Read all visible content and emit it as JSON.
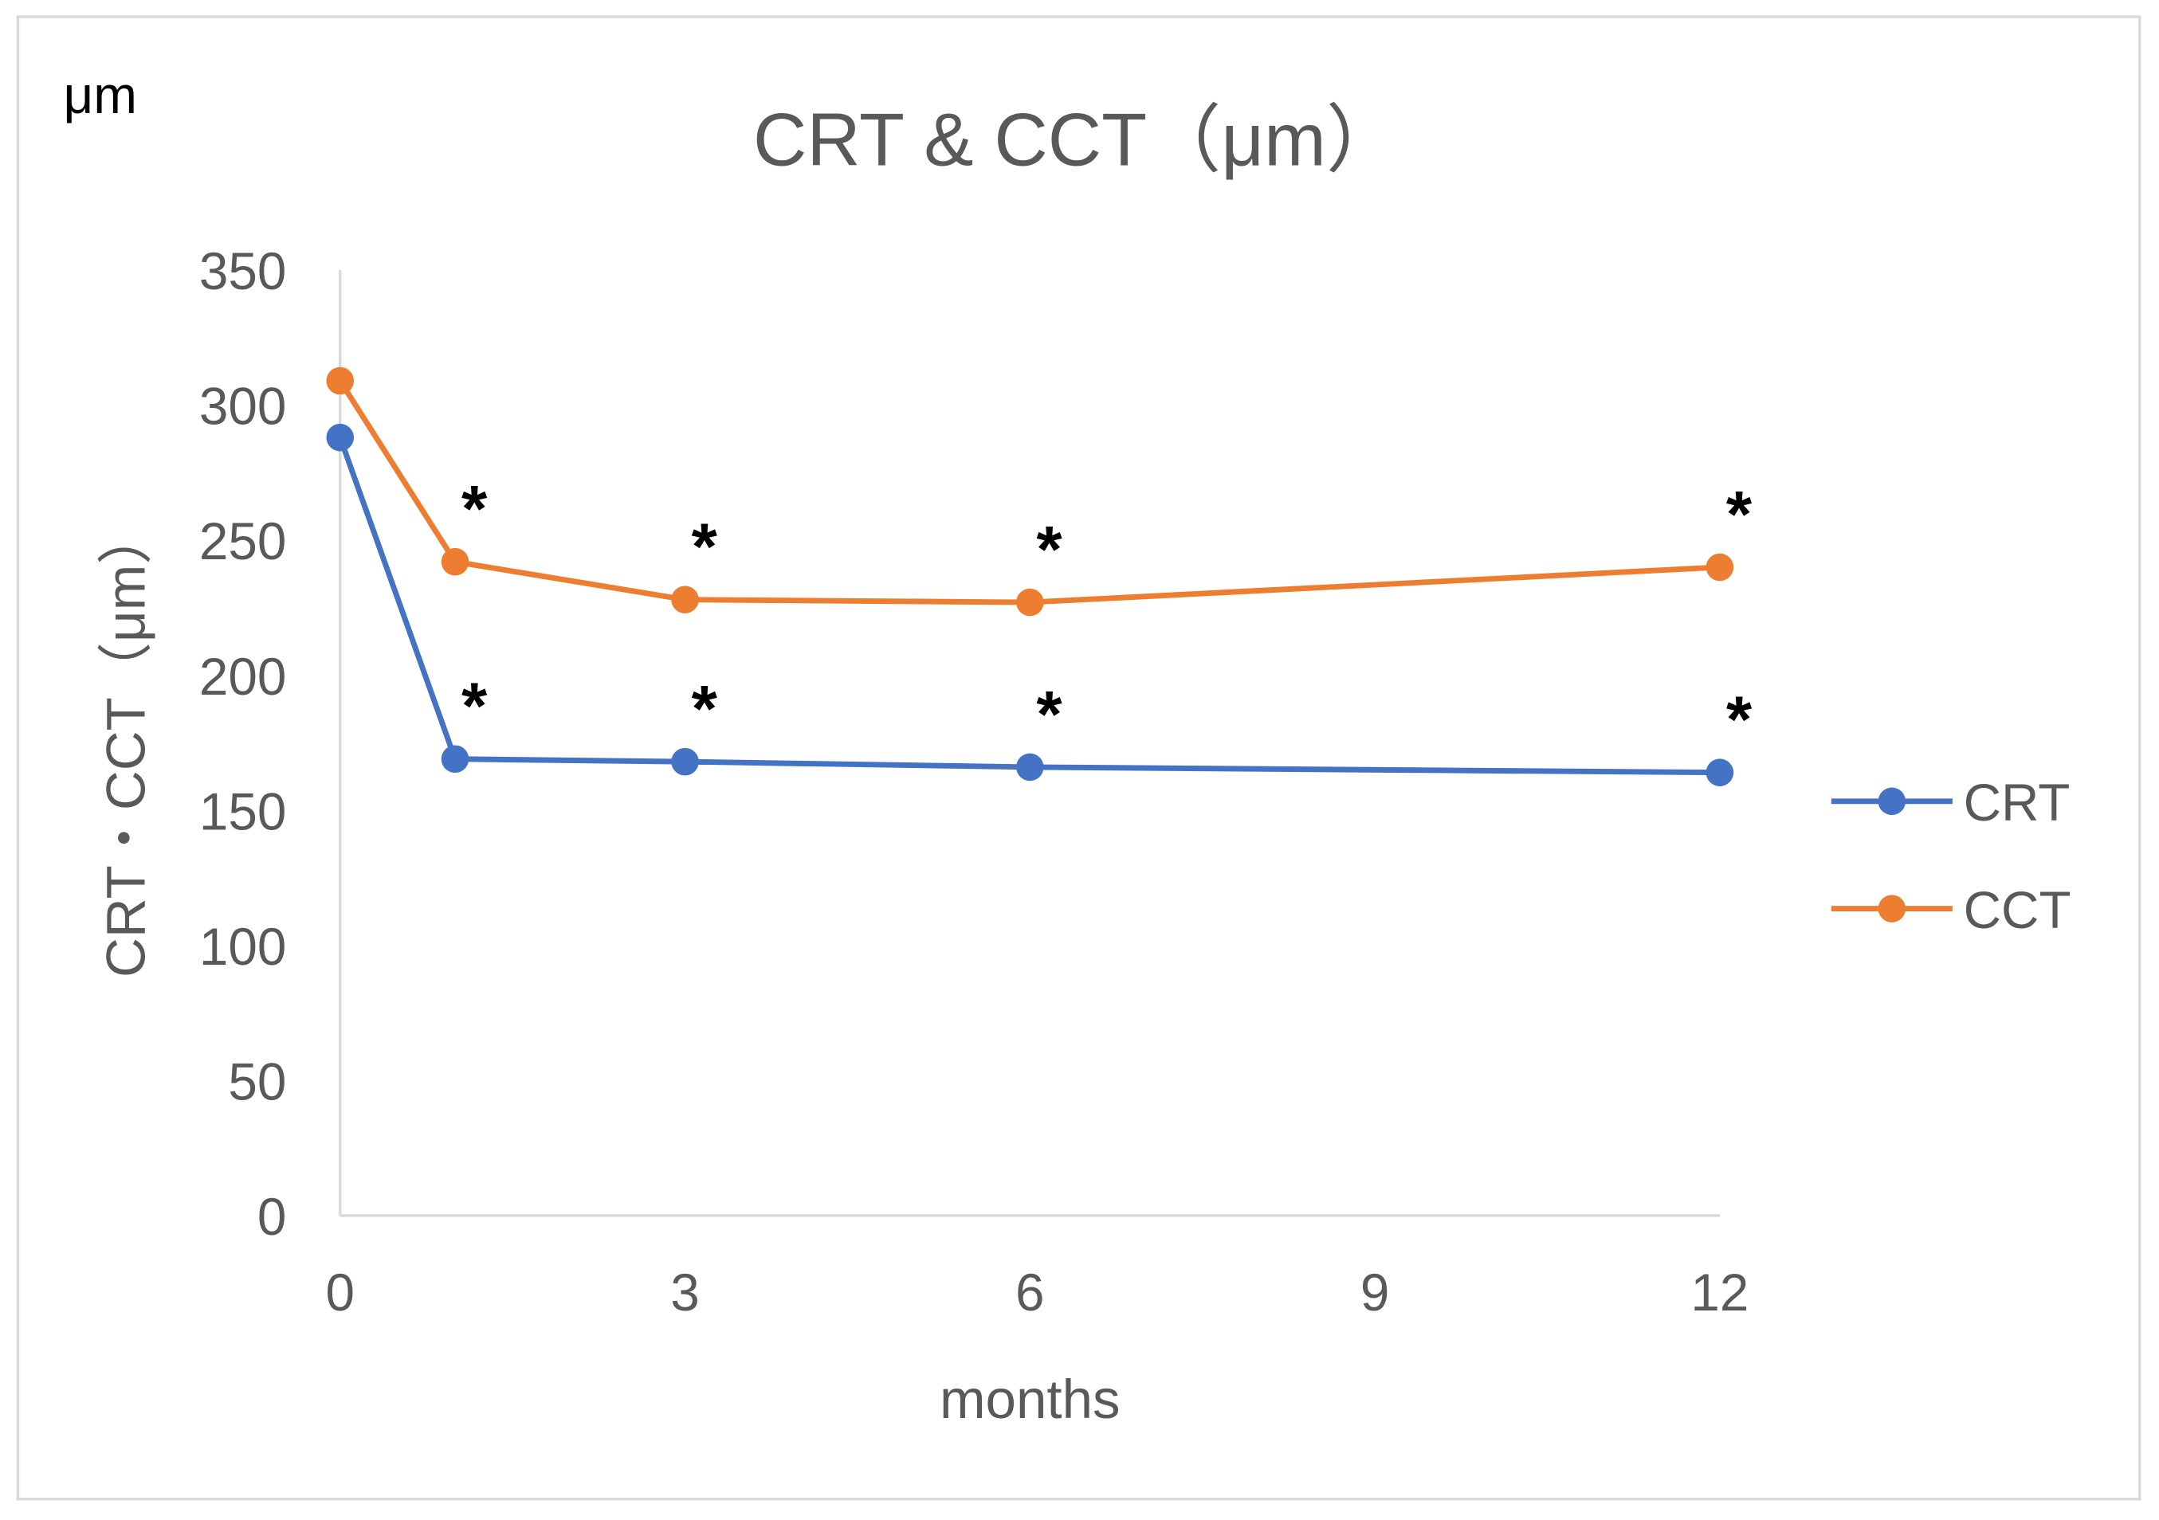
{
  "chart_data": {
    "type": "line",
    "title": "CRT & CCT（μm）",
    "unit_label": "μm",
    "xlabel": "months",
    "ylabel": "CRT・CCT（μm）",
    "xlim": [
      0,
      12
    ],
    "ylim": [
      0,
      350
    ],
    "xticks": [
      0,
      3,
      6,
      9,
      12
    ],
    "yticks": [
      0,
      50,
      100,
      150,
      200,
      250,
      300,
      350
    ],
    "grid": false,
    "legend_position": "right",
    "series": [
      {
        "name": "CRT",
        "color": "#4472C4",
        "x": [
          0,
          1,
          3,
          6,
          12
        ],
        "y": [
          288,
          169,
          168,
          166,
          164
        ]
      },
      {
        "name": "CCT",
        "color": "#ED7D31",
        "x": [
          0,
          1,
          3,
          6,
          12
        ],
        "y": [
          309,
          242,
          228,
          227,
          240
        ]
      }
    ],
    "annotations": {
      "symbol": "*",
      "CRT_at_months": [
        1,
        3,
        6,
        12
      ],
      "CCT_at_months": [
        1,
        3,
        6,
        12
      ]
    }
  }
}
